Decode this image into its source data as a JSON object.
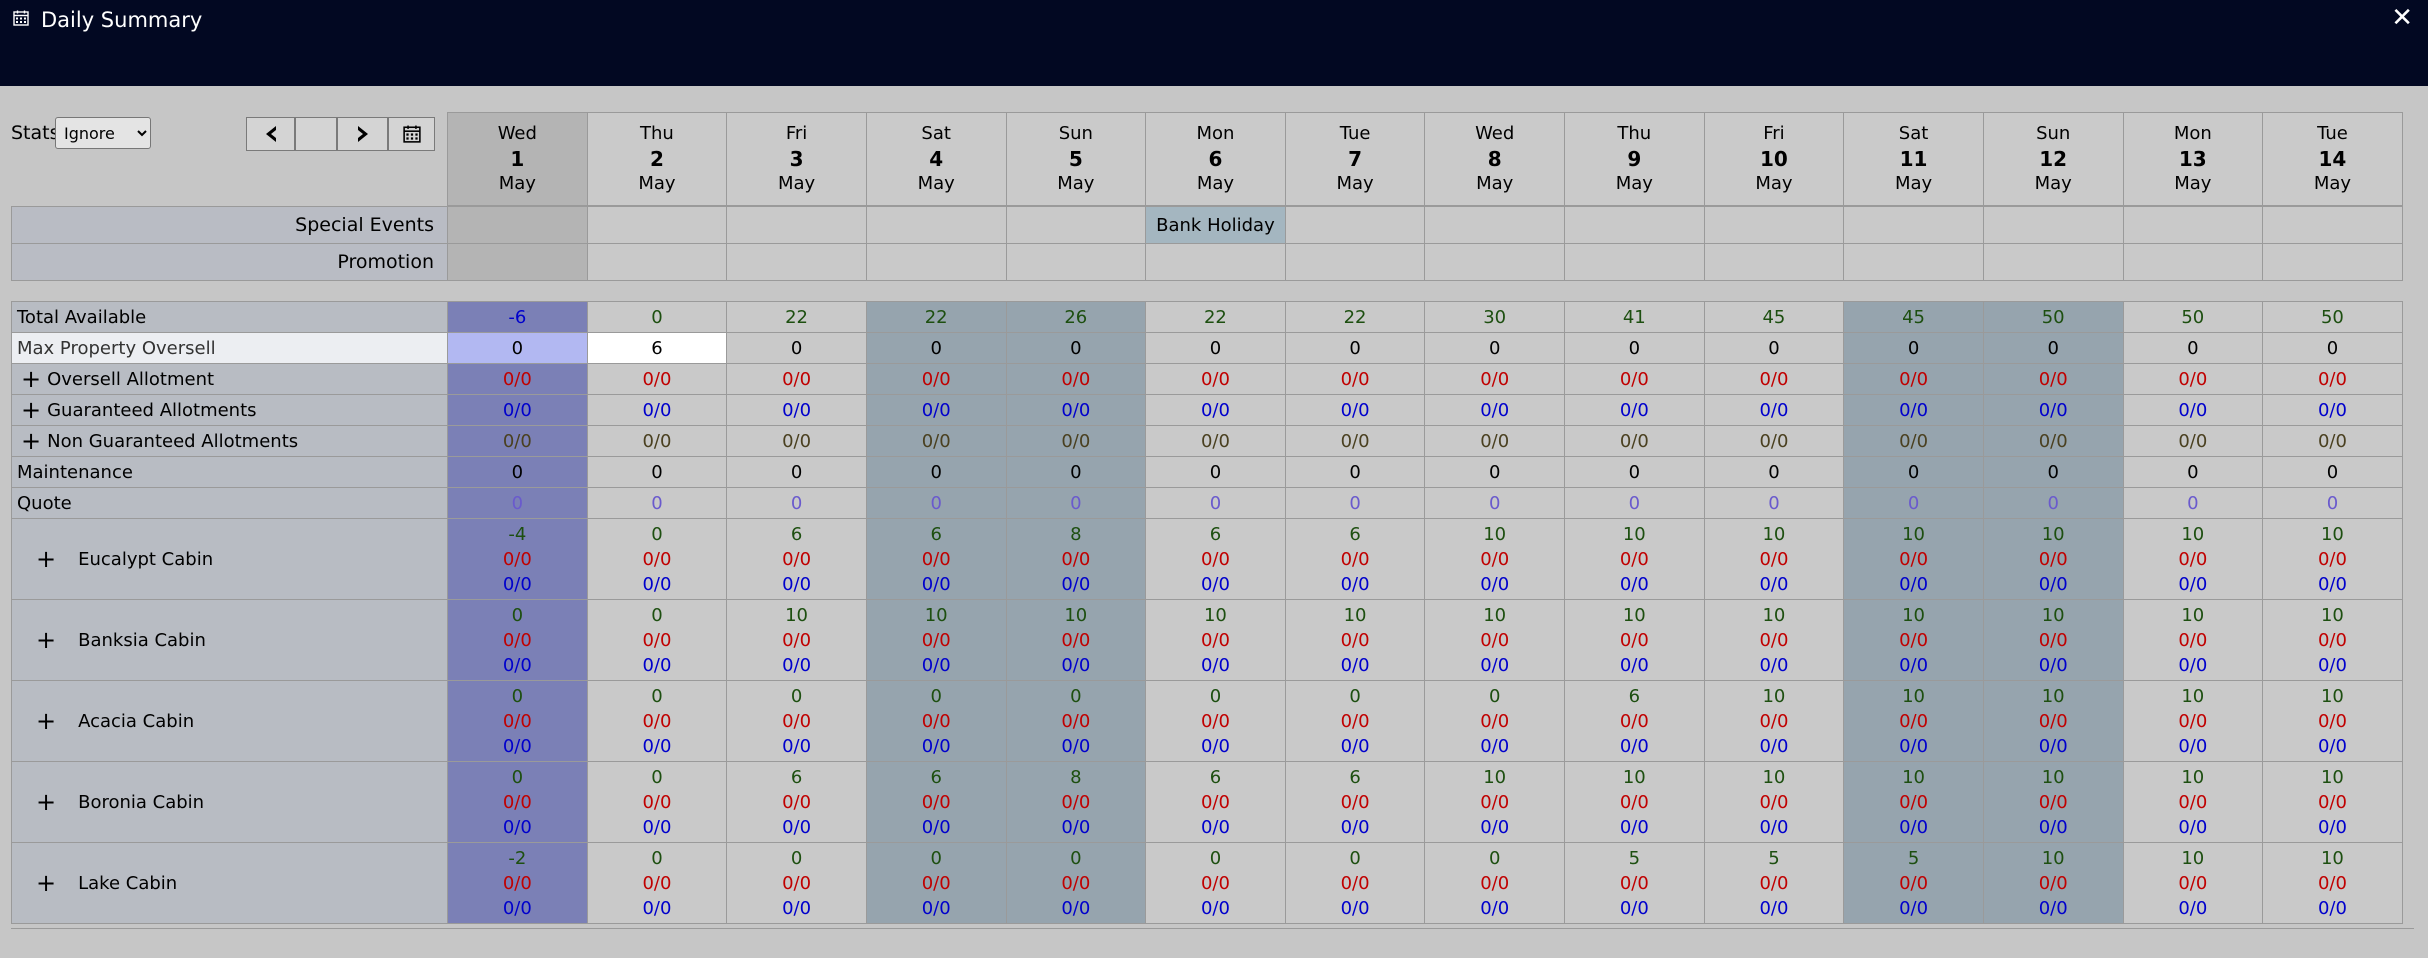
{
  "window": {
    "title": "Daily Summary",
    "icon": "calendar-icon",
    "close_label": "✕"
  },
  "stats": {
    "label": "Stats",
    "selected": "Ignore"
  },
  "nav": {
    "prev_icon": "chevron-left-icon",
    "next_icon": "chevron-right-icon",
    "calendar_icon": "calendar-icon"
  },
  "days": [
    {
      "dow": "Wed",
      "num": "1",
      "mon": "May"
    },
    {
      "dow": "Thu",
      "num": "2",
      "mon": "May"
    },
    {
      "dow": "Fri",
      "num": "3",
      "mon": "May"
    },
    {
      "dow": "Sat",
      "num": "4",
      "mon": "May"
    },
    {
      "dow": "Sun",
      "num": "5",
      "mon": "May"
    },
    {
      "dow": "Mon",
      "num": "6",
      "mon": "May"
    },
    {
      "dow": "Tue",
      "num": "7",
      "mon": "May"
    },
    {
      "dow": "Wed",
      "num": "8",
      "mon": "May"
    },
    {
      "dow": "Thu",
      "num": "9",
      "mon": "May"
    },
    {
      "dow": "Fri",
      "num": "10",
      "mon": "May"
    },
    {
      "dow": "Sat",
      "num": "11",
      "mon": "May"
    },
    {
      "dow": "Sun",
      "num": "12",
      "mon": "May"
    },
    {
      "dow": "Mon",
      "num": "13",
      "mon": "May"
    },
    {
      "dow": "Tue",
      "num": "14",
      "mon": "May"
    }
  ],
  "events": {
    "special_label": "Special Events",
    "promotion_label": "Promotion",
    "special": [
      "",
      "",
      "",
      "",
      "",
      "Bank Holiday",
      "",
      "",
      "",
      "",
      "",
      "",
      "",
      ""
    ],
    "promotion": [
      "",
      "",
      "",
      "",
      "",
      "",
      "",
      "",
      "",
      "",
      "",
      "",
      "",
      ""
    ]
  },
  "rows": {
    "total_available": {
      "label": "Total Available",
      "values": [
        "-6",
        "0",
        "22",
        "22",
        "26",
        "22",
        "22",
        "30",
        "41",
        "45",
        "45",
        "50",
        "50",
        "50"
      ]
    },
    "max_oversell": {
      "label": "Max Property Oversell",
      "values": [
        "0",
        "6",
        "0",
        "0",
        "0",
        "0",
        "0",
        "0",
        "0",
        "0",
        "0",
        "0",
        "0",
        "0"
      ]
    },
    "oversell_allotment": {
      "label": "Oversell Allotment",
      "values": [
        "0/0",
        "0/0",
        "0/0",
        "0/0",
        "0/0",
        "0/0",
        "0/0",
        "0/0",
        "0/0",
        "0/0",
        "0/0",
        "0/0",
        "0/0",
        "0/0"
      ]
    },
    "guaranteed": {
      "label": "Guaranteed Allotments",
      "values": [
        "0/0",
        "0/0",
        "0/0",
        "0/0",
        "0/0",
        "0/0",
        "0/0",
        "0/0",
        "0/0",
        "0/0",
        "0/0",
        "0/0",
        "0/0",
        "0/0"
      ]
    },
    "non_guaranteed": {
      "label": "Non Guaranteed Allotments",
      "values": [
        "0/0",
        "0/0",
        "0/0",
        "0/0",
        "0/0",
        "0/0",
        "0/0",
        "0/0",
        "0/0",
        "0/0",
        "0/0",
        "0/0",
        "0/0",
        "0/0"
      ]
    },
    "maintenance": {
      "label": "Maintenance",
      "values": [
        "0",
        "0",
        "0",
        "0",
        "0",
        "0",
        "0",
        "0",
        "0",
        "0",
        "0",
        "0",
        "0",
        "0"
      ]
    },
    "quote": {
      "label": "Quote",
      "values": [
        "0",
        "0",
        "0",
        "0",
        "0",
        "0",
        "0",
        "0",
        "0",
        "0",
        "0",
        "0",
        "0",
        "0"
      ]
    }
  },
  "room_types": [
    {
      "name": "Eucalypt Cabin",
      "avail": [
        "-4",
        "0",
        "6",
        "6",
        "8",
        "6",
        "6",
        "10",
        "10",
        "10",
        "10",
        "10",
        "10",
        "10"
      ]
    },
    {
      "name": "Banksia Cabin",
      "avail": [
        "0",
        "0",
        "10",
        "10",
        "10",
        "10",
        "10",
        "10",
        "10",
        "10",
        "10",
        "10",
        "10",
        "10"
      ]
    },
    {
      "name": "Acacia Cabin",
      "avail": [
        "0",
        "0",
        "0",
        "0",
        "0",
        "0",
        "0",
        "0",
        "6",
        "10",
        "10",
        "10",
        "10",
        "10"
      ]
    },
    {
      "name": "Boronia Cabin",
      "avail": [
        "0",
        "0",
        "6",
        "6",
        "8",
        "6",
        "6",
        "10",
        "10",
        "10",
        "10",
        "10",
        "10",
        "10"
      ]
    },
    {
      "name": "Lake Cabin",
      "avail": [
        "-2",
        "0",
        "0",
        "0",
        "0",
        "0",
        "0",
        "0",
        "5",
        "5",
        "5",
        "10",
        "10",
        "10"
      ]
    }
  ],
  "room_sub_value": "0/0",
  "expand_symbol": "+"
}
